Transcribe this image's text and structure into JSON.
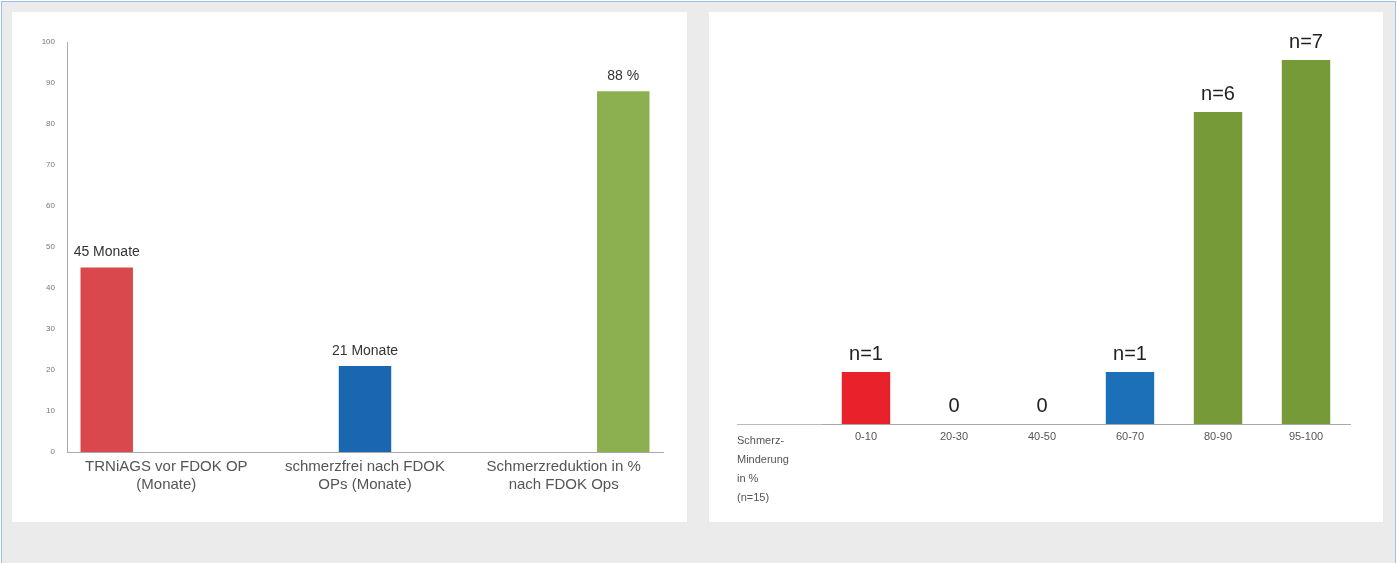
{
  "chart_data": [
    {
      "type": "bar",
      "categories": [
        "TRNiAGS vor FDOK OP (Monate)",
        "schmerzfrei nach FDOK OPs (Monate)",
        "Schmerzreduktion in % nach FDOK Ops"
      ],
      "series": [
        {
          "color": "#d9494b",
          "values": [
            45,
            null,
            null
          ],
          "value_labels": [
            "45 Monate",
            null,
            null
          ]
        },
        {
          "color": "#1a67b0",
          "values": [
            null,
            21,
            null
          ],
          "value_labels": [
            null,
            "21 Monate",
            null
          ]
        },
        {
          "color": "#8cb050",
          "values": [
            null,
            null,
            88
          ],
          "value_labels": [
            null,
            null,
            "88 %"
          ]
        }
      ],
      "ylim": [
        0,
        100
      ],
      "yticks": [
        0,
        10,
        20,
        30,
        40,
        50,
        60,
        70,
        80,
        90,
        100
      ]
    },
    {
      "type": "bar",
      "categories": [
        "0-10",
        "20-30",
        "40-50",
        "60-70",
        "80-90",
        "95-100"
      ],
      "xlabel": "Schmerz-Minderung in % (n=15)",
      "values": [
        1,
        0,
        0,
        1,
        6,
        7
      ],
      "colors": [
        "#e8212b",
        null,
        null,
        "#1b70b8",
        "#769a38",
        "#769a38"
      ],
      "value_labels": [
        "n=1",
        "0",
        "0",
        "n=1",
        "n=6",
        "n=7"
      ]
    }
  ]
}
